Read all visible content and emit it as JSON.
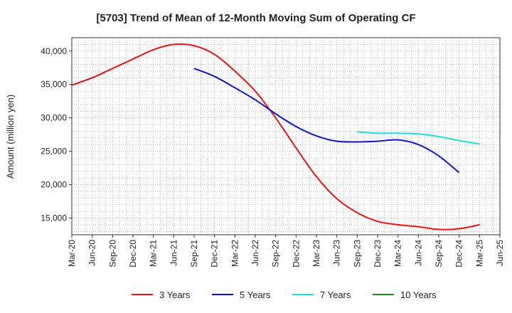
{
  "chart_data": {
    "type": "line",
    "title": "[5703]  Trend of Mean of 12-Month Moving Sum of Operating CF",
    "xlabel": "",
    "ylabel": "Amount (million yen)",
    "ylim": [
      12500,
      42000
    ],
    "yticks": [
      15000,
      20000,
      25000,
      30000,
      35000,
      40000
    ],
    "ytick_labels": [
      "15,000",
      "20,000",
      "25,000",
      "30,000",
      "35,000",
      "40,000"
    ],
    "x_ticks": [
      "Mar-20",
      "Jun-20",
      "Sep-20",
      "Dec-20",
      "Mar-21",
      "Jun-21",
      "Sep-21",
      "Dec-21",
      "Mar-22",
      "Jun-22",
      "Sep-22",
      "Dec-22",
      "Mar-23",
      "Jun-23",
      "Sep-23",
      "Dec-23",
      "Mar-24",
      "Jun-24",
      "Sep-24",
      "Dec-24",
      "Mar-25",
      "Jun-25"
    ],
    "grid": true,
    "legend_position": "bottom",
    "series": [
      {
        "name": "3 Years",
        "color": "#ee1111",
        "start_index": 0,
        "values": [
          34900,
          36000,
          37400,
          38800,
          40200,
          41000,
          40800,
          39500,
          37000,
          34000,
          30000,
          25500,
          21200,
          17900,
          15800,
          14500,
          14000,
          13700,
          13300,
          13400,
          14000
        ]
      },
      {
        "name": "5 Years",
        "color": "#1111cc",
        "start_index": 6,
        "values": [
          37400,
          36200,
          34500,
          32700,
          30600,
          28700,
          27300,
          26500,
          26400,
          26500,
          26700,
          26000,
          24300,
          21800
        ]
      },
      {
        "name": "7 Years",
        "color": "#22dddd",
        "start_index": 14,
        "values": [
          27900,
          27700,
          27700,
          27600,
          27200,
          26600,
          26100
        ]
      },
      {
        "name": "10 Years",
        "color": "#228822",
        "start_index": 0,
        "values": []
      }
    ]
  }
}
